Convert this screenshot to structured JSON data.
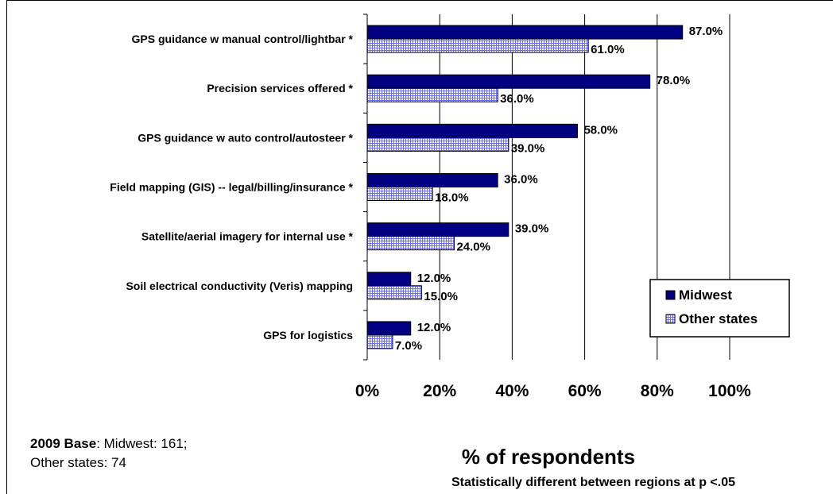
{
  "chart_data": {
    "type": "bar",
    "orientation": "horizontal",
    "categories": [
      "GPS guidance w manual control/lightbar  *",
      "Precision services offered *",
      "GPS guidance w auto control/autosteer  *",
      "Field mapping (GIS) -- legal/billing/insurance  *",
      "Satellite/aerial imagery for internal use *",
      "Soil electrical conductivity (Veris) mapping",
      "GPS for logistics"
    ],
    "series": [
      {
        "name": "Midwest",
        "values": [
          87.0,
          78.0,
          58.0,
          36.0,
          39.0,
          12.0,
          12.0
        ],
        "color": "#000080",
        "pattern": "solid"
      },
      {
        "name": "Other states",
        "values": [
          61.0,
          36.0,
          39.0,
          18.0,
          24.0,
          15.0,
          7.0
        ],
        "color": "#8080ff",
        "pattern": "grid"
      }
    ],
    "data_labels": {
      "Midwest": [
        "87.0%",
        "78.0%",
        "58.0%",
        "36.0%",
        "39.0%",
        "12.0%",
        "12.0%"
      ],
      "Other states": [
        "61.0%",
        "36.0%",
        "39.0%",
        "18.0%",
        "24.0%",
        "15.0%",
        "7.0%"
      ]
    },
    "xlim": [
      0,
      100
    ],
    "x_ticks": [
      "0%",
      "20%",
      "40%",
      "60%",
      "80%",
      "100%"
    ],
    "xlabel": "% of respondents",
    "ylabel": "",
    "title": "",
    "grid": "vertical",
    "legend_position": "bottom-right"
  },
  "notes": {
    "base_bold": "2009 Base",
    "base_line1_rest": ": Midwest: 161;",
    "base_line2": "Other states: 74",
    "footnote": "Statistically different between regions at p <.05"
  }
}
